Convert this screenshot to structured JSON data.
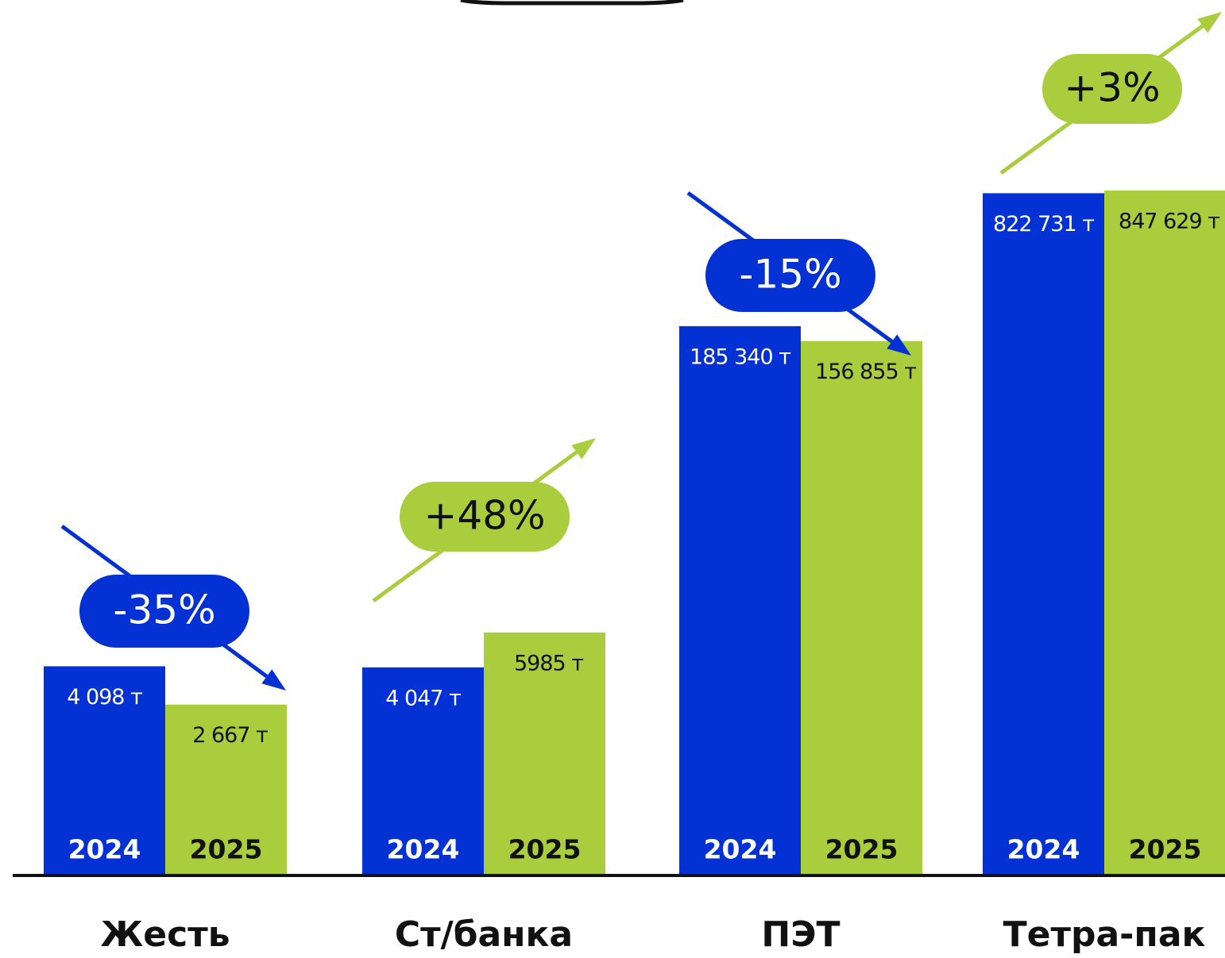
{
  "chart_data": {
    "type": "bar",
    "categories": [
      "Жесть",
      "Ст/банка",
      "ПЭТ",
      "Тетра-пак"
    ],
    "series": [
      {
        "name": "2024",
        "color": "#0331d4",
        "values": [
          4098,
          4047,
          185340,
          822731
        ],
        "value_labels": [
          "4 098  т",
          "4 047  т",
          "185 340 т",
          "822 731 т"
        ]
      },
      {
        "name": "2025",
        "color": "#a9cd3c",
        "values": [
          2667,
          5985,
          156855,
          847629
        ],
        "value_labels": [
          "2 667  т",
          "5985 т",
          "156 855 т",
          "847 629 т"
        ]
      }
    ],
    "log_scale": true,
    "ylim": [
      400,
      1200000
    ],
    "annotations": [
      {
        "text": "-35%",
        "color": "#0331d4"
      },
      {
        "text": "+48%",
        "color": "#a9cd3c"
      },
      {
        "text": "-15%",
        "color": "#0331d4"
      },
      {
        "text": "+3%",
        "color": "#a9cd3c"
      }
    ]
  }
}
